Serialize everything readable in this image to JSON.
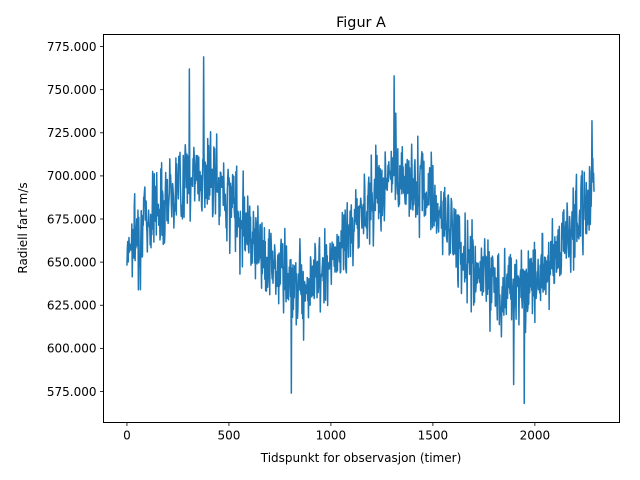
{
  "chart_data": {
    "type": "line",
    "title": "Figur A",
    "xlabel": "Tidspunkt for observasjon (timer)",
    "ylabel": "Radiell fart m/s",
    "xlim": [
      -115,
      2415
    ],
    "ylim": [
      557,
      782
    ],
    "x_ticks": [
      0,
      500,
      1000,
      1500,
      2000
    ],
    "x_tick_labels": [
      "0",
      "500",
      "1000",
      "1500",
      "2000"
    ],
    "y_ticks": [
      575,
      600,
      625,
      650,
      675,
      700,
      725,
      750,
      775
    ],
    "y_tick_labels": [
      "575.000",
      "600.000",
      "625.000",
      "650.000",
      "675.000",
      "700.000",
      "725.000",
      "750.000",
      "775.000"
    ],
    "grid": false,
    "series": [
      {
        "color": "#1f77b4",
        "x_start": 0,
        "x_step": 2,
        "trend": {
          "x": [
            0,
            100,
            200,
            300,
            400,
            500,
            600,
            700,
            800,
            900,
            1000,
            1100,
            1200,
            1300,
            1400,
            1500,
            1600,
            1700,
            1800,
            1900,
            2000,
            2100,
            2200,
            2290
          ],
          "y": [
            660,
            675,
            690,
            700,
            700,
            688,
            670,
            650,
            640,
            638,
            648,
            668,
            688,
            700,
            697,
            688,
            665,
            645,
            638,
            635,
            640,
            655,
            673,
            690
          ]
        },
        "peaks": [
          {
            "x": 375,
            "y": 769
          },
          {
            "x": 305,
            "y": 762
          },
          {
            "x": 1310,
            "y": 758
          },
          {
            "x": 2280,
            "y": 732
          },
          {
            "x": 805,
            "y": 574
          },
          {
            "x": 1948,
            "y": 568
          },
          {
            "x": 1895,
            "y": 579
          },
          {
            "x": 65,
            "y": 634
          }
        ]
      }
    ]
  }
}
